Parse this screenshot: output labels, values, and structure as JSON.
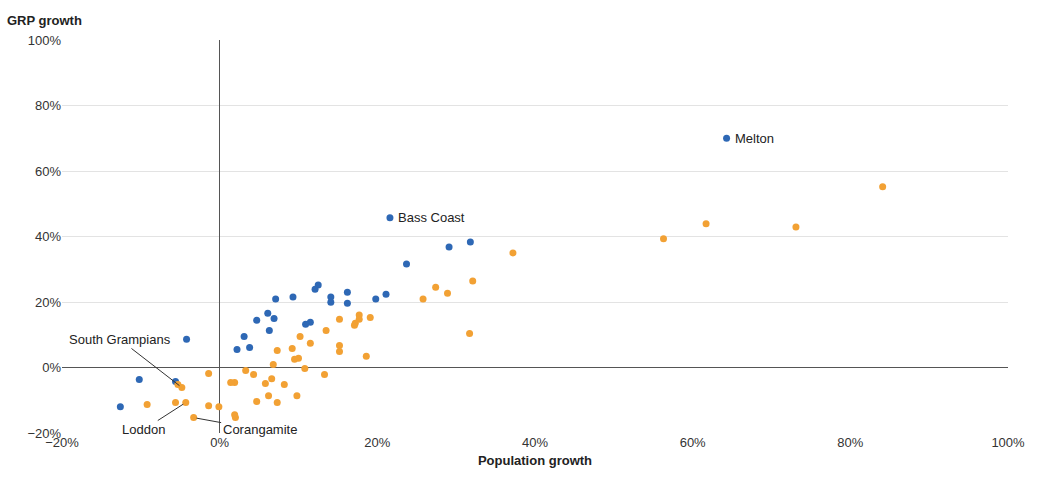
{
  "chart_data": {
    "type": "scatter",
    "x_label": "Population growth",
    "y_label": "GRP growth",
    "xlim": [
      -20,
      100
    ],
    "ylim": [
      -20,
      100
    ],
    "xticks": [
      {
        "value": -20,
        "label": "−20%"
      },
      {
        "value": 0,
        "label": "0%"
      },
      {
        "value": 20,
        "label": "20%"
      },
      {
        "value": 40,
        "label": "40%"
      },
      {
        "value": 60,
        "label": "60%"
      },
      {
        "value": 80,
        "label": "80%"
      },
      {
        "value": 100,
        "label": "100%"
      }
    ],
    "yticks": [
      {
        "value": -20,
        "label": "−20%"
      },
      {
        "value": 0,
        "label": "0%"
      },
      {
        "value": 20,
        "label": "20%"
      },
      {
        "value": 40,
        "label": "40%"
      },
      {
        "value": 60,
        "label": "60%"
      },
      {
        "value": 80,
        "label": "80%"
      },
      {
        "value": 100,
        "label": "100%"
      }
    ],
    "grid": true,
    "series": [
      {
        "color": "#2e68b5",
        "marker": "circle",
        "x": [
          64.3,
          21.6,
          29.1,
          31.8,
          23.7,
          21.1,
          19.8,
          16.2,
          16.2,
          14.1,
          14.1,
          12.5,
          12.1,
          11.5,
          10.9,
          9.3,
          7.1,
          6.9,
          6.1,
          6.3,
          4.7,
          3.8,
          3.1,
          2.2,
          -4.2,
          -10.2,
          -5.6,
          -12.6
        ],
        "values": [
          70,
          45.7,
          36.8,
          38.3,
          31.6,
          22.4,
          20.9,
          23,
          19.6,
          21.5,
          19.9,
          25.2,
          23.9,
          13.8,
          13.2,
          21.5,
          20.9,
          15,
          16.6,
          11.3,
          14.4,
          6.1,
          9.5,
          5.5,
          8.6,
          -3.7,
          -4.3,
          -12
        ]
      },
      {
        "color": "#f2a134",
        "marker": "circle",
        "x": [
          84.1,
          73.1,
          61.7,
          56.3,
          37.2,
          32.1,
          31.7,
          28.9,
          27.4,
          25.8,
          19.1,
          17.7,
          17.7,
          17.2,
          17.1,
          15.2,
          15.2,
          15.2,
          18.6,
          13.5,
          13.3,
          11.5,
          10.8,
          10.2,
          10,
          9.5,
          9.2,
          9.8,
          8.2,
          7.3,
          6.8,
          6.6,
          6.2,
          5.8,
          7.3,
          4.7,
          4.3,
          3.3,
          1.9,
          1.4,
          2,
          1.9,
          -0.1,
          -1.4,
          -1.4,
          -3.3,
          -4.3,
          -4.8,
          -5.6,
          -5.3,
          -9.2
        ],
        "values": [
          55.2,
          42.9,
          43.9,
          39.3,
          35,
          26.4,
          10.4,
          22.7,
          24.5,
          20.9,
          15.3,
          16,
          14.7,
          13.5,
          12.9,
          14.7,
          6.7,
          4.9,
          3.4,
          11.3,
          -2.1,
          7.4,
          -0.3,
          9.5,
          2.8,
          2.5,
          5.8,
          -8.6,
          -5.2,
          5.2,
          0.9,
          -3.4,
          -8.6,
          -4.9,
          -10.7,
          -10.4,
          -2.1,
          -0.9,
          -4.6,
          -4.6,
          -15.3,
          -14.4,
          -12,
          -1.8,
          -11.7,
          -15.3,
          -10.7,
          -6.1,
          -10.7,
          -5.2,
          -11.3
        ]
      }
    ],
    "annotations": [
      {
        "text": "Melton",
        "x": 64.3,
        "y": 70
      },
      {
        "text": "Bass Coast",
        "x": 21.6,
        "y": 45.7
      },
      {
        "text": "South Grampians",
        "x": -4.8,
        "y": -6.1
      },
      {
        "text": "Loddon",
        "x": -4.3,
        "y": -10.7
      },
      {
        "text": "Corangamite",
        "x": -3.3,
        "y": -15.3
      }
    ]
  }
}
